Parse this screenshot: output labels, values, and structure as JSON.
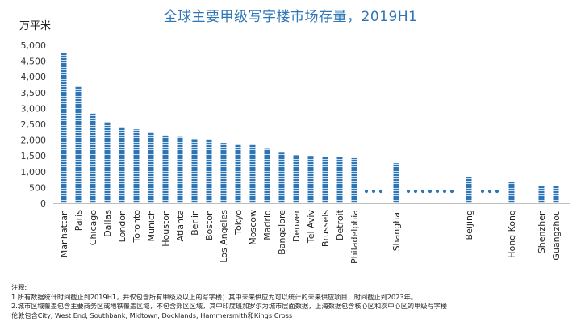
{
  "chart_data": {
    "type": "bar",
    "title": "全球主要甲级写字楼市场存量，2019H1",
    "ylabel": "万平米",
    "xlabel": "",
    "ylim": [
      0,
      5000
    ],
    "yticks": [
      "0",
      "500",
      "1,000",
      "1,500",
      "2,000",
      "2,500",
      "3,000",
      "3,500",
      "4,000",
      "4,500",
      "5,000"
    ],
    "grid": false,
    "bar_color": "#2e75b6",
    "categories": [
      "Manhattan",
      "Paris",
      "Chicago",
      "Dallas",
      "London",
      "Toronto",
      "Munich",
      "Houston",
      "Atlanta",
      "Berlin",
      "Boston",
      "Los Angeles",
      "Tokyo",
      "Moscow",
      "Madrid",
      "Bangalore",
      "Denver",
      "Tel Aviv",
      "Brussels",
      "Detroit",
      "Philadelphia",
      "Shanghai",
      "Beijing",
      "Hong Kong",
      "Shenzhen",
      "Guangzhou"
    ],
    "values": [
      4750,
      3700,
      2850,
      2560,
      2420,
      2340,
      2270,
      2160,
      2100,
      2030,
      2020,
      1910,
      1880,
      1860,
      1720,
      1600,
      1520,
      1500,
      1480,
      1460,
      1430,
      1270,
      830,
      690,
      540,
      540
    ]
  },
  "notes": {
    "heading": "注释:",
    "line1": "1.所有数据统计时间截止到2019H1，并仅包含所有甲级及以上的写字楼；其中未来供应为可以统计的未来供应项目，时间截止到2023年。",
    "line2": "2.城市区域覆盖包含主要商务区或地铁覆盖区域，不包含郊区区域，其中印度班加罗尔为城市层面数据，上海数据包含核心区和次中心区的甲级写字楼",
    "line3": "伦敦包含City, West End, Southbank, Midtown, Docklands, Hammersmith和Kings Cross"
  }
}
